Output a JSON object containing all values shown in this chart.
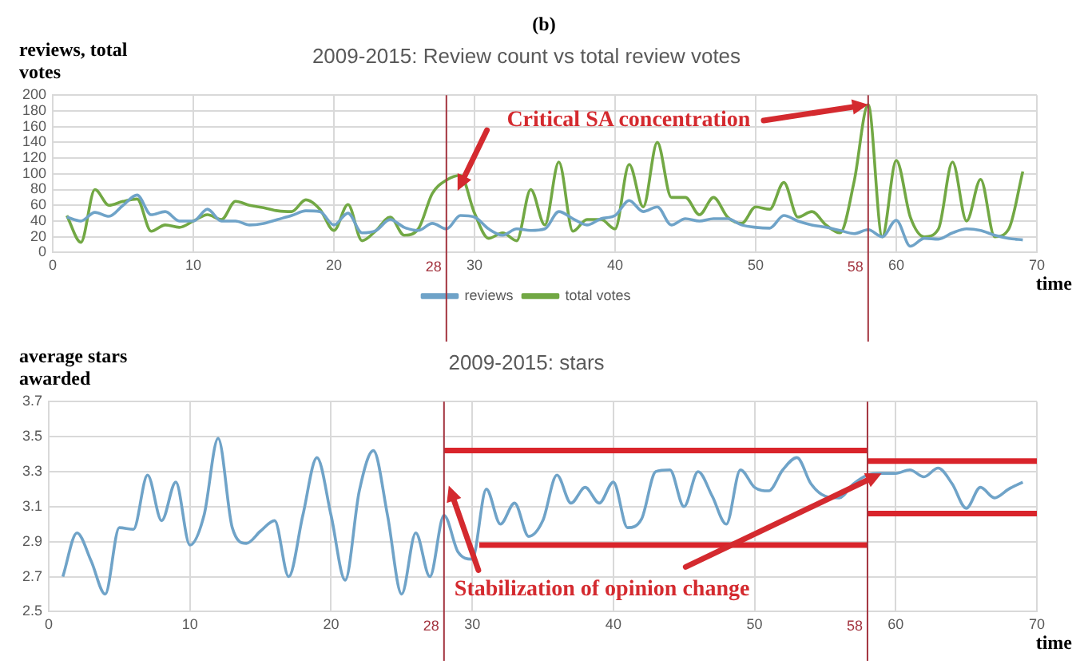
{
  "chart_data": [
    {
      "type": "line",
      "title": "2009-2015: Review count vs total review votes",
      "ylabel": "reviews, total votes",
      "xlabel": "time",
      "x": [
        1,
        2,
        3,
        4,
        5,
        6,
        7,
        8,
        9,
        10,
        11,
        12,
        13,
        14,
        15,
        16,
        17,
        18,
        19,
        20,
        21,
        22,
        23,
        24,
        25,
        26,
        27,
        28,
        29,
        30,
        31,
        32,
        33,
        34,
        35,
        36,
        37,
        38,
        39,
        40,
        41,
        42,
        43,
        44,
        45,
        46,
        47,
        48,
        49,
        50,
        51,
        52,
        53,
        54,
        55,
        56,
        57,
        58,
        59,
        60,
        61,
        62,
        63,
        64,
        65,
        66,
        67,
        68,
        69
      ],
      "series": [
        {
          "name": "reviews",
          "color": "#6fa3c8",
          "values": [
            45,
            40,
            51,
            46,
            60,
            73,
            48,
            52,
            40,
            40,
            55,
            40,
            40,
            35,
            37,
            42,
            47,
            53,
            52,
            35,
            50,
            25,
            28,
            42,
            32,
            28,
            37,
            30,
            47,
            45,
            30,
            22,
            30,
            28,
            30,
            52,
            43,
            35,
            43,
            47,
            66,
            52,
            58,
            35,
            43,
            40,
            43,
            43,
            35,
            32,
            31,
            47,
            40,
            35,
            32,
            28,
            24,
            29,
            20,
            41,
            8,
            18,
            17,
            25,
            30,
            28,
            22,
            18,
            16
          ]
        },
        {
          "name": "total votes",
          "color": "#72a844",
          "values": [
            47,
            13,
            80,
            60,
            65,
            68,
            27,
            35,
            32,
            40,
            48,
            42,
            65,
            60,
            57,
            53,
            52,
            67,
            55,
            28,
            61,
            15,
            28,
            45,
            22,
            30,
            75,
            92,
            98,
            50,
            18,
            25,
            15,
            80,
            35,
            115,
            27,
            42,
            42,
            30,
            112,
            58,
            140,
            70,
            70,
            48,
            70,
            45,
            37,
            58,
            55,
            89,
            45,
            52,
            35,
            25,
            90,
            188,
            20,
            117,
            45,
            20,
            30,
            115,
            40,
            93,
            20,
            30,
            103
          ]
        }
      ],
      "xlim": [
        0,
        70
      ],
      "xticks": [
        0,
        10,
        20,
        30,
        40,
        50,
        60,
        70
      ],
      "ylim": [
        0,
        200
      ],
      "yticks": [
        0,
        20,
        40,
        60,
        80,
        100,
        120,
        140,
        160,
        180,
        200
      ],
      "grid": true,
      "legend": "bottom",
      "ref_lines": [
        {
          "axis": "x",
          "value": 28,
          "label": "28",
          "color": "#a3343f"
        },
        {
          "axis": "x",
          "value": 58,
          "label": "58",
          "color": "#a3343f"
        }
      ],
      "annotations": [
        "(b)",
        {
          "text": "Critical SA concentration",
          "x": 58,
          "y": 188
        }
      ]
    },
    {
      "type": "line",
      "title": "2009-2015: stars",
      "ylabel": "average stars awarded",
      "xlabel": "time",
      "x": [
        1,
        2,
        3,
        4,
        5,
        6,
        7,
        8,
        9,
        10,
        11,
        12,
        13,
        14,
        15,
        16,
        17,
        18,
        19,
        20,
        21,
        22,
        23,
        24,
        25,
        26,
        27,
        28,
        29,
        30,
        31,
        32,
        33,
        34,
        35,
        36,
        37,
        38,
        39,
        40,
        41,
        42,
        43,
        44,
        45,
        46,
        47,
        48,
        49,
        50,
        51,
        52,
        53,
        54,
        55,
        56,
        57,
        58,
        59,
        60,
        61,
        62,
        63,
        64,
        65,
        66,
        67,
        68,
        69
      ],
      "series": [
        {
          "color": "#6fa3c8",
          "values": [
            2.7,
            2.95,
            2.79,
            2.6,
            2.98,
            2.97,
            3.28,
            3.02,
            3.24,
            2.88,
            3.05,
            3.49,
            2.98,
            2.89,
            2.96,
            3.02,
            2.7,
            3.05,
            3.38,
            3.05,
            2.68,
            3.19,
            3.42,
            3.05,
            2.6,
            2.95,
            2.7,
            3.05,
            2.84,
            2.8,
            3.2,
            3.0,
            3.12,
            2.93,
            3.02,
            3.28,
            3.12,
            3.21,
            3.12,
            3.24,
            2.98,
            3.03,
            3.3,
            3.31,
            3.1,
            3.3,
            3.16,
            3.0,
            3.31,
            3.21,
            3.19,
            3.31,
            3.38,
            3.23,
            3.16,
            3.15,
            3.23,
            3.28,
            3.29,
            3.29,
            3.31,
            3.27,
            3.32,
            3.23,
            3.09,
            3.21,
            3.15,
            3.2,
            3.24
          ]
        },
        {
          "type": "line",
          "color": "#d9242b",
          "x": [
            28,
            58
          ],
          "values": [
            3.42,
            3.42
          ]
        },
        {
          "type": "line",
          "color": "#d9242b",
          "x": [
            30.5,
            58
          ],
          "values": [
            2.88,
            2.88
          ]
        },
        {
          "type": "line",
          "color": "#d9242b",
          "x": [
            58,
            70
          ],
          "values": [
            3.36,
            3.36
          ]
        },
        {
          "type": "line",
          "color": "#d9242b",
          "x": [
            58,
            70
          ],
          "values": [
            3.06,
            3.06
          ]
        }
      ],
      "xlim": [
        0,
        70
      ],
      "xticks": [
        0,
        10,
        20,
        30,
        40,
        50,
        60,
        70
      ],
      "ylim": [
        2.5,
        3.7
      ],
      "yticks": [
        2.5,
        2.7,
        2.9,
        3.1,
        3.3,
        3.5,
        3.7
      ],
      "grid": true,
      "ref_lines": [
        {
          "axis": "x",
          "value": 28,
          "label": "28",
          "color": "#a3343f"
        },
        {
          "axis": "x",
          "value": 58,
          "label": "58",
          "color": "#a3343f"
        }
      ],
      "annotations": [
        {
          "text": "Stabilization of opinion change",
          "x": 59,
          "y": 3.29
        }
      ]
    }
  ]
}
